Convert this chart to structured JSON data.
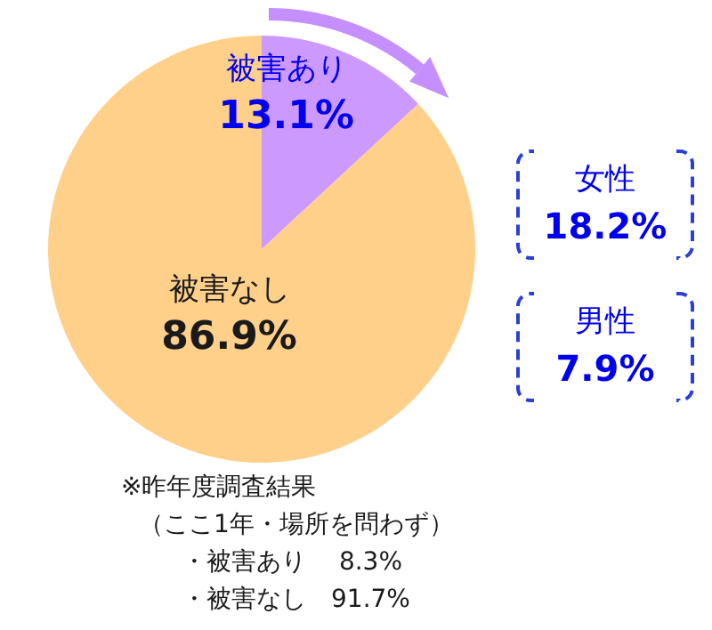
{
  "chart_data": {
    "type": "pie",
    "categories": [
      "被害あり",
      "被害なし"
    ],
    "values": [
      13.1,
      86.9
    ],
    "colors": [
      "#cc99ff",
      "#ffd08a"
    ],
    "value_labels": [
      "13.1%",
      "86.9%"
    ],
    "annotations": [
      "女性",
      "18.2%",
      "男性",
      "7.9%",
      "※昨年度調査結果",
      "（ここ1年・場所を問わず）",
      "・被害あり　 8.3%",
      "・被害なし　91.7%"
    ]
  }
}
